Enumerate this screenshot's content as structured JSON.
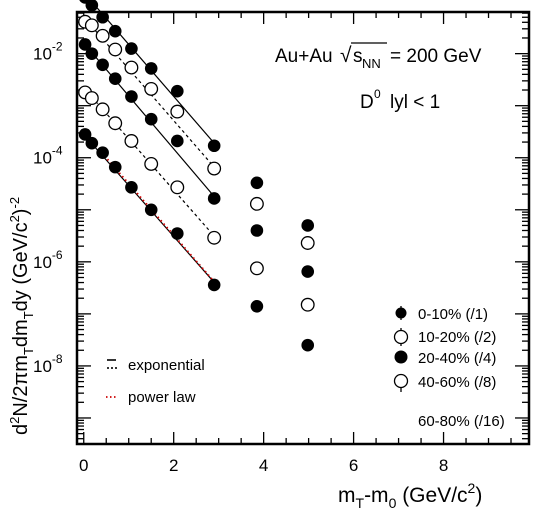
{
  "chart_data": {
    "type": "scatter",
    "title_line1": "Au+Au",
    "sqrt_symbol": "√",
    "title_s": "s",
    "title_sub": "NN",
    "title_energy": "= 200 GeV",
    "selection_prefix": "D",
    "selection_sup": "0",
    "selection_suffix": "lyl < 1",
    "ylabel": "d²N/2πm_T dm_T dy (GeV/c²)⁻²",
    "xlabel": "m_T-m_0 (GeV/c²)",
    "y_scale": "log",
    "xlim": [
      -0.15,
      9.9
    ],
    "ylim_log10": [
      -9.5,
      -1.2
    ],
    "x_ticks": [
      0,
      2,
      4,
      6,
      8
    ],
    "x_tick_labels": [
      "0",
      "2",
      "4",
      "6",
      "8"
    ],
    "y_ticks": [
      {
        "base": "10",
        "exp": "-8",
        "value": 1e-08
      },
      {
        "base": "10",
        "exp": "-6",
        "value": 1e-06
      },
      {
        "base": "10",
        "exp": "-4",
        "value": 0.0001
      },
      {
        "base": "10",
        "exp": "-2",
        "value": 0.01
      }
    ],
    "fit_legend": [
      {
        "label": "exponential",
        "style": "exponential-solid-dashed"
      },
      {
        "label": "power law",
        "style": "red-dotted",
        "color": "#cc0000"
      }
    ],
    "series": [
      {
        "name": "0-10% (/1)",
        "marker": "filled",
        "x": [
          0.03,
          0.18,
          0.42,
          0.7,
          1.06,
          1.5,
          2.08,
          2.9,
          3.85,
          4.98
        ],
        "y": [
          0.12,
          0.085,
          0.05,
          0.027,
          0.0125,
          0.0052,
          0.0019,
          0.00017,
          3.3e-05,
          5e-06
        ]
      },
      {
        "name": "10-20% (/2)",
        "marker": "open",
        "x": [
          0.03,
          0.18,
          0.42,
          0.7,
          1.06,
          1.5,
          2.08,
          2.9,
          3.85,
          4.98
        ],
        "y": [
          0.041,
          0.035,
          0.022,
          0.012,
          0.0054,
          0.0021,
          0.00077,
          6.2e-05,
          1.3e-05,
          2.3e-06
        ]
      },
      {
        "name": "20-40% (/4)",
        "marker": "filled",
        "x": [
          0.03,
          0.18,
          0.42,
          0.7,
          1.06,
          1.5,
          2.08,
          2.9,
          3.85,
          4.98
        ],
        "y": [
          0.015,
          0.01,
          0.0061,
          0.0033,
          0.0015,
          0.00055,
          0.00021,
          1.65e-05,
          4e-06,
          6.5e-07
        ]
      },
      {
        "name": "40-60% (/8)",
        "marker": "open",
        "x": [
          0.03,
          0.18,
          0.42,
          0.7,
          1.06,
          1.5,
          2.08,
          2.9,
          3.85,
          4.98
        ],
        "y": [
          0.0018,
          0.0014,
          0.00085,
          0.00046,
          0.00021,
          7.6e-05,
          2.7e-05,
          2.9e-06,
          7.5e-07,
          1.5e-07
        ]
      },
      {
        "name": "60-80% (/16)",
        "marker": "filled",
        "x": [
          0.03,
          0.18,
          0.42,
          0.7,
          1.06,
          1.5,
          2.08,
          2.9,
          3.85,
          4.98
        ],
        "y": [
          0.00028,
          0.00019,
          0.000125,
          6.6e-05,
          2.7e-05,
          1e-05,
          3.5e-06,
          3.6e-07,
          1.4e-07,
          2.5e-08
        ]
      }
    ],
    "fits": [
      {
        "series": "0-10% (/1)",
        "kind": "exponential",
        "line": "solid",
        "x": [
          0.0,
          2.95
        ],
        "y": [
          0.15,
          0.00017
        ]
      },
      {
        "series": "10-20% (/2)",
        "kind": "exponential",
        "line": "dashed",
        "x": [
          0.0,
          2.95
        ],
        "y": [
          0.05,
          5.9e-05
        ]
      },
      {
        "series": "20-40% (/4)",
        "kind": "exponential",
        "line": "solid",
        "x": [
          0.0,
          2.95
        ],
        "y": [
          0.016,
          1.6e-05
        ]
      },
      {
        "series": "40-60% (/8)",
        "kind": "exponential",
        "line": "dashed",
        "x": [
          0.0,
          2.95
        ],
        "y": [
          0.0022,
          2.8e-06
        ]
      },
      {
        "series": "60-80% (/16)",
        "kind": "exponential",
        "line": "solid",
        "x": [
          0.0,
          2.95
        ],
        "y": [
          0.00028,
          3.6e-07
        ]
      },
      {
        "series": "60-80% (/16)",
        "kind": "power law",
        "line": "dotted",
        "color": "#cc0000",
        "x": [
          0.0,
          2.95
        ],
        "y": [
          0.00031,
          3.7e-07
        ]
      }
    ]
  }
}
